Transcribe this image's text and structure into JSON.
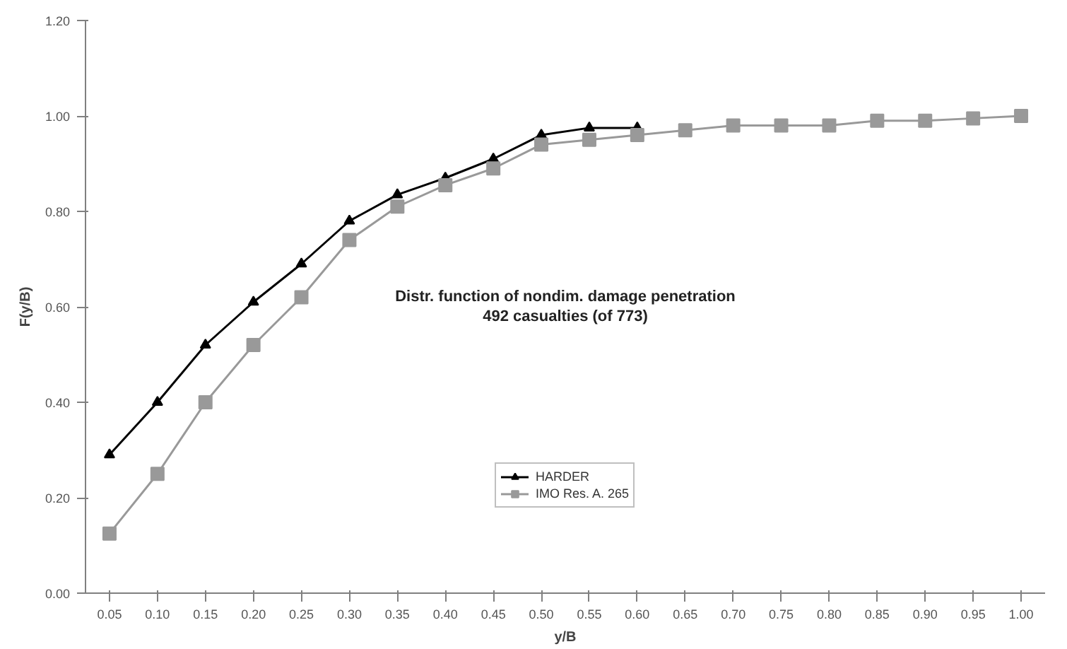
{
  "chart_data": {
    "type": "line",
    "title": null,
    "xlabel": "y/B",
    "ylabel": "F(y/B)",
    "annotations": [
      "Distr. function of nondim. damage penetration\n492 casualties (of 773)"
    ],
    "categories": [
      "0.05",
      "0.10",
      "0.15",
      "0.20",
      "0.25",
      "0.30",
      "0.35",
      "0.40",
      "0.45",
      "0.50",
      "0.55",
      "0.60",
      "0.65",
      "0.70",
      "0.75",
      "0.80",
      "0.85",
      "0.90",
      "0.95",
      "1.00"
    ],
    "series": [
      {
        "name": "HARDER",
        "color": "#000000",
        "marker": "triangle",
        "values": [
          0.29,
          0.4,
          0.52,
          0.61,
          0.69,
          0.78,
          0.835,
          0.87,
          0.91,
          0.96,
          0.975,
          0.975,
          null,
          null,
          null,
          null,
          null,
          null,
          null,
          null
        ]
      },
      {
        "name": "IMO Res. A. 265",
        "color": "#999999",
        "marker": "square",
        "values": [
          0.125,
          0.25,
          0.4,
          0.52,
          0.62,
          0.74,
          0.81,
          0.855,
          0.89,
          0.94,
          0.95,
          0.96,
          0.97,
          0.98,
          0.98,
          0.98,
          0.99,
          0.99,
          0.995,
          1.0
        ]
      }
    ],
    "ylim": [
      0,
      1.2
    ],
    "yticks": [
      {
        "value": 0,
        "label": "0.00"
      },
      {
        "value": 0.2,
        "label": "0.20"
      },
      {
        "value": 0.4,
        "label": "0.40"
      },
      {
        "value": 0.6,
        "label": "0.60"
      },
      {
        "value": 0.8,
        "label": "0.80"
      },
      {
        "value": 1.0,
        "label": "1.00"
      },
      {
        "value": 1.2,
        "label": "1.20"
      }
    ],
    "grid": false,
    "legend": "bottom"
  }
}
